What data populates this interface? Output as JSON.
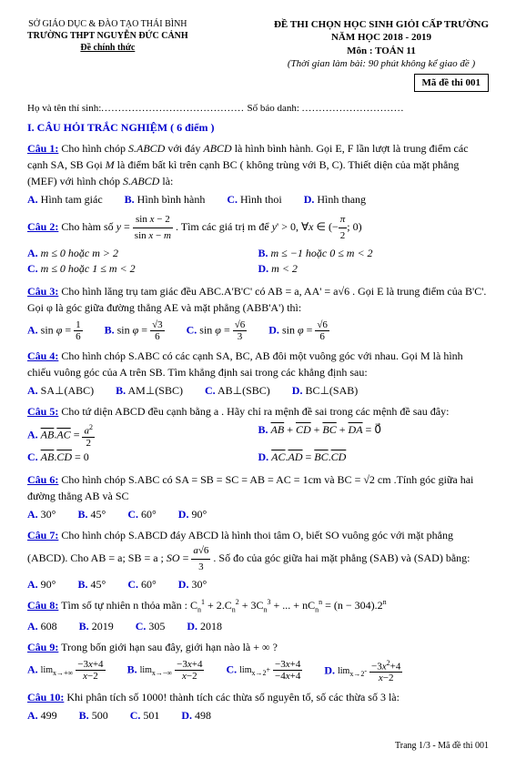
{
  "header": {
    "dept": "SỞ GIÁO DỤC & ĐÀO TẠO THÁI BÌNH",
    "school": "TRƯỜNG THPT NGUYỄN ĐỨC CẢNH",
    "official": "Đề chính thức",
    "title1": "ĐỀ THI CHỌN HỌC SINH GIỎI CẤP TRƯỜNG",
    "title2": "NĂM HỌC 2018 - 2019",
    "subject": "Môn : TOÁN 11",
    "time": "(Thời gian làm bài: 90 phút không kể giao đề )",
    "code": "Mã đề thi 001"
  },
  "name_line": {
    "left": "Họ và tên thí sinh:",
    "right": "Số báo danh:"
  },
  "section1": "I. CÂU HỎI TRẮC NGHIỆM ( 6 điểm )",
  "q1": {
    "label": "Câu 1:",
    "text1": " Cho hình chóp ",
    "em1": "S.ABCD",
    "text2": " với đáy ",
    "em2": "ABCD",
    "text3": " là hình bình hành. Gọi E, F lần lượt là trung điểm các cạnh SA, SB Gọi ",
    "em3": "M",
    "text4": " là điểm bất kì trên cạnh BC ( không trùng với B, C). Thiết diện của mặt phẳng (MEF) với hình chóp ",
    "em4": "S.ABCD",
    "text5": " là:",
    "opts": {
      "a": "Hình tam giác",
      "b": "Hình bình hành",
      "c": "Hình thoi",
      "d": "Hình thang"
    }
  },
  "q2": {
    "label": "Câu 2:",
    "text1": " Cho  hàm số ",
    "text2": " . Tìm các giá trị m để ",
    "opts": {
      "a": "m ≤ 0  hoặc  m > 2",
      "b": "m ≤ −1  hoặc  0 ≤ m < 2",
      "c": "m ≤ 0  hoặc 1 ≤ m < 2",
      "d": "m < 2"
    }
  },
  "q3": {
    "label": "Câu 3:",
    "text": " Cho hình lăng trụ tam giác đều ABC.A'B'C' có AB = a,  AA' = a√6 . Gọi E  là trung điểm của B'C'. Gọi φ là góc giữa đường thẳng AE và mặt phẳng (ABB'A') thì:"
  },
  "q4": {
    "label": "Câu 4:",
    "text": " Cho hình chóp S.ABC có các cạnh SA, BC, AB đôi một vuông góc với nhau. Gọi M là hình chiếu vuông góc của A trên SB. Tìm khẳng định sai trong các khẳng định sau:",
    "opts": {
      "a": "SA⊥(ABC)",
      "b": "AM⊥(SBC)",
      "c": "AB⊥(SBC)",
      "d": "BC⊥(SAB)"
    }
  },
  "q5": {
    "label": "Câu 5:",
    "text": " Cho tứ diện ABCD đều cạnh  bằng a . Hãy chỉ ra mệnh đề sai trong các mệnh đề sau đây:"
  },
  "q6": {
    "label": "Câu 6:",
    "text": " Cho hình chóp S.ABC  có SA = SB = SC = AB = AC = 1cm  và BC = √2 cm .Tính góc giữa hai đường thẳng  AB  và SC",
    "opts": {
      "a": "30°",
      "b": "45°",
      "c": "60°",
      "d": "90°"
    }
  },
  "q7": {
    "label": "Câu 7:",
    "text1": " Cho hình chóp S.ABCD đáy ABCD là hình thoi tâm O, biết SO vuông góc với mặt phẳng (ABCD). Cho AB = a;   SB = a ; ",
    "text2": " . Số đo của góc giữa hai mặt phẳng (SAB) và (SAD) bằng:",
    "opts": {
      "a": "90°",
      "b": "45°",
      "c": "60°",
      "d": "30°"
    }
  },
  "q8": {
    "label": "Câu 8:",
    "text": " Tìm số tự nhiên n thỏa mãn : ",
    "opts": {
      "a": "608",
      "b": "2019",
      "c": "305",
      "d": "2018"
    }
  },
  "q9": {
    "label": "Câu 9:",
    "text": " Trong bốn giới hạn sau đây, giới hạn nào là + ∞ ?"
  },
  "q10": {
    "label": "Câu 10:",
    "text": " Khi phân tích số 1000! thành tích các thừa số nguyên tố, số các thừa số 3 là:",
    "opts": {
      "a": "499",
      "b": "500",
      "c": "501",
      "d": "498"
    }
  },
  "footer": "Trang 1/3 - Mã đề thi 001"
}
